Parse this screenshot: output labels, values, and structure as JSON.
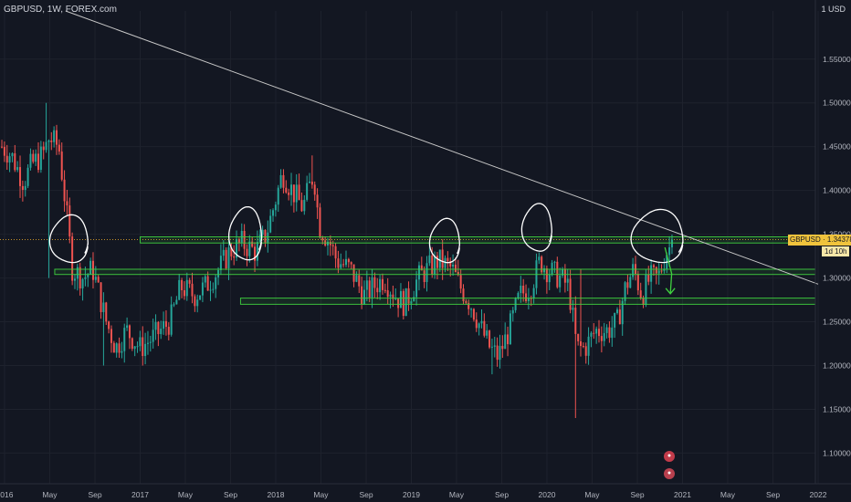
{
  "header": {
    "symbol_line": "GBPUSD, 1W, FOREX.com",
    "currency": "1 USD"
  },
  "price_tag": {
    "symbol": "GBPUSD",
    "price": "1.34378",
    "countdown": "1d 10h"
  },
  "colors": {
    "background": "#131722",
    "up": "#26a69a",
    "down": "#ef5350",
    "zones": "#3fd13f",
    "trendline": "#c8c8c8",
    "annotation": "#ffffff"
  },
  "chart_data": {
    "type": "candlestick",
    "ylim": [
      1.065,
      1.605
    ],
    "y_ticks": [
      1.1,
      1.15,
      1.2,
      1.25,
      1.3,
      1.35,
      1.4,
      1.45,
      1.5,
      1.55
    ],
    "y_tick_labels": [
      "1.10000",
      "1.15000",
      "1.20000",
      "1.25000",
      "1.30000",
      "1.35000",
      "1.40000",
      "1.45000",
      "1.50000",
      "1.55000"
    ],
    "x_ticks": [
      {
        "label": "2016",
        "t": 0
      },
      {
        "label": "May",
        "t": 0.333
      },
      {
        "label": "Sep",
        "t": 0.667
      },
      {
        "label": "2017",
        "t": 1.0
      },
      {
        "label": "May",
        "t": 1.333
      },
      {
        "label": "Sep",
        "t": 1.667
      },
      {
        "label": "2018",
        "t": 2.0
      },
      {
        "label": "May",
        "t": 2.333
      },
      {
        "label": "Sep",
        "t": 2.667
      },
      {
        "label": "2019",
        "t": 3.0
      },
      {
        "label": "May",
        "t": 3.333
      },
      {
        "label": "Sep",
        "t": 3.667
      },
      {
        "label": "2020",
        "t": 4.0
      },
      {
        "label": "May",
        "t": 4.333
      },
      {
        "label": "Sep",
        "t": 4.667
      },
      {
        "label": "2021",
        "t": 5.0
      },
      {
        "label": "May",
        "t": 5.333
      },
      {
        "label": "Sep",
        "t": 5.667
      },
      {
        "label": "2022",
        "t": 6.0
      }
    ],
    "price_path": [
      [
        -0.02,
        1.45
      ],
      [
        0.05,
        1.44
      ],
      [
        0.14,
        1.41
      ],
      [
        0.2,
        1.43
      ],
      [
        0.28,
        1.44
      ],
      [
        0.33,
        1.46
      ],
      [
        0.4,
        1.45
      ],
      [
        0.46,
        1.37
      ],
      [
        0.5,
        1.31
      ],
      [
        0.58,
        1.3
      ],
      [
        0.65,
        1.31
      ],
      [
        0.75,
        1.25
      ],
      [
        0.82,
        1.22
      ],
      [
        0.9,
        1.24
      ],
      [
        1.0,
        1.22
      ],
      [
        1.08,
        1.23
      ],
      [
        1.15,
        1.24
      ],
      [
        1.22,
        1.25
      ],
      [
        1.3,
        1.29
      ],
      [
        1.4,
        1.28
      ],
      [
        1.48,
        1.29
      ],
      [
        1.58,
        1.31
      ],
      [
        1.66,
        1.33
      ],
      [
        1.75,
        1.34
      ],
      [
        1.85,
        1.33
      ],
      [
        1.93,
        1.35
      ],
      [
        2.0,
        1.39
      ],
      [
        2.05,
        1.42
      ],
      [
        2.12,
        1.4
      ],
      [
        2.2,
        1.38
      ],
      [
        2.28,
        1.42
      ],
      [
        2.32,
        1.36
      ],
      [
        2.4,
        1.34
      ],
      [
        2.45,
        1.32
      ],
      [
        2.55,
        1.31
      ],
      [
        2.65,
        1.28
      ],
      [
        2.72,
        1.29
      ],
      [
        2.8,
        1.3
      ],
      [
        2.88,
        1.28
      ],
      [
        2.95,
        1.27
      ],
      [
        3.05,
        1.3
      ],
      [
        3.12,
        1.31
      ],
      [
        3.2,
        1.32
      ],
      [
        3.3,
        1.31
      ],
      [
        3.36,
        1.29
      ],
      [
        3.44,
        1.27
      ],
      [
        3.52,
        1.24
      ],
      [
        3.58,
        1.22
      ],
      [
        3.64,
        1.21
      ],
      [
        3.72,
        1.24
      ],
      [
        3.8,
        1.28
      ],
      [
        3.88,
        1.29
      ],
      [
        3.95,
        1.32
      ],
      [
        4.0,
        1.31
      ],
      [
        4.1,
        1.3
      ],
      [
        4.16,
        1.29
      ],
      [
        4.22,
        1.22
      ],
      [
        4.28,
        1.22
      ],
      [
        4.36,
        1.24
      ],
      [
        4.45,
        1.24
      ],
      [
        4.52,
        1.25
      ],
      [
        4.58,
        1.29
      ],
      [
        4.64,
        1.31
      ],
      [
        4.7,
        1.28
      ],
      [
        4.76,
        1.3
      ],
      [
        4.82,
        1.3
      ],
      [
        4.88,
        1.33
      ],
      [
        4.93,
        1.34
      ]
    ],
    "spikes": [
      {
        "t": 0.3,
        "high": 1.5
      },
      {
        "t": 0.33,
        "low": 1.3
      },
      {
        "t": 0.73,
        "low": 1.2
      },
      {
        "t": 1.02,
        "low": 1.2
      },
      {
        "t": 2.26,
        "high": 1.44
      },
      {
        "t": 3.6,
        "low": 1.19
      },
      {
        "t": 4.22,
        "low": 1.14
      },
      {
        "t": 4.25,
        "high": 1.31
      }
    ],
    "last_price": 1.34378,
    "zones": [
      {
        "t_start": 1.0,
        "price_top": 1.347,
        "price_bottom": 1.34
      },
      {
        "t_start": 0.37,
        "price_top": 1.31,
        "price_bottom": 1.304
      },
      {
        "t_start": 1.74,
        "price_top": 1.277,
        "price_bottom": 1.27
      }
    ],
    "trendline": [
      [
        0.45,
        1.605
      ],
      [
        6.0,
        1.293
      ]
    ],
    "circles": [
      {
        "t": 0.48,
        "price": 1.344,
        "rt": 0.14,
        "rp": 0.027
      },
      {
        "t": 1.78,
        "price": 1.35,
        "rt": 0.12,
        "rp": 0.03
      },
      {
        "t": 3.25,
        "price": 1.342,
        "rt": 0.11,
        "rp": 0.025
      },
      {
        "t": 3.93,
        "price": 1.357,
        "rt": 0.11,
        "rp": 0.027
      },
      {
        "t": 4.82,
        "price": 1.347,
        "rt": 0.19,
        "rp": 0.03
      }
    ],
    "arrow": [
      [
        4.87,
        1.335
      ],
      [
        4.92,
        1.305
      ],
      [
        4.91,
        1.282
      ]
    ]
  }
}
